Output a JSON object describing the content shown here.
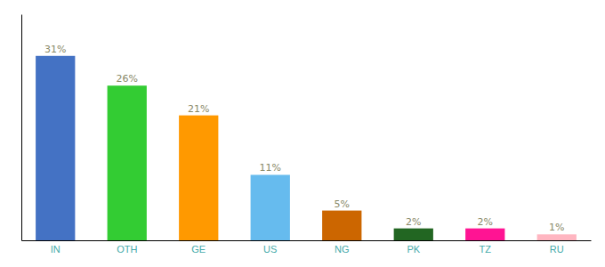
{
  "chart_data": {
    "type": "bar",
    "categories": [
      "IN",
      "OTH",
      "GE",
      "US",
      "NG",
      "PK",
      "TZ",
      "RU"
    ],
    "values": [
      31,
      26,
      21,
      11,
      5,
      2,
      2,
      1
    ],
    "value_labels": [
      "31%",
      "26%",
      "21%",
      "11%",
      "5%",
      "2%",
      "2%",
      "1%"
    ],
    "colors": [
      "#4472C4",
      "#33CC33",
      "#FF9900",
      "#66BBEE",
      "#CC6600",
      "#226622",
      "#FF1493",
      "#FFB6C1"
    ],
    "ylim": [
      0,
      38
    ],
    "data_labels": true,
    "tick_labels": "x",
    "grid": false
  }
}
